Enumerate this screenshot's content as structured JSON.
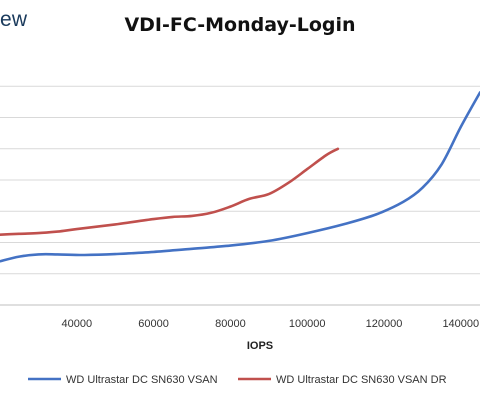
{
  "logo_fragment": "ew",
  "chart_data": {
    "type": "line",
    "title": "VDI-FC-Monday-Login",
    "xlabel": "IOPS",
    "ylabel": "",
    "xlim": [
      20000,
      145000
    ],
    "ylim": [
      0,
      8
    ],
    "x_ticks": [
      40000,
      60000,
      80000,
      100000,
      120000,
      140000
    ],
    "x_tick_labels": [
      "40000",
      "60000",
      "80000",
      "100000",
      "120000",
      "140000"
    ],
    "y_gridlines": [
      1,
      2,
      3,
      4,
      5,
      6,
      7
    ],
    "grid": true,
    "legend": "bottom",
    "series": [
      {
        "name": "WD Ultrastar DC SN630 VSAN",
        "color": "#4472C4",
        "x": [
          20000,
          25000,
          30000,
          35000,
          42000,
          50000,
          60000,
          70000,
          80000,
          90000,
          100000,
          110000,
          118000,
          125000,
          130000,
          135000,
          140000,
          145000
        ],
        "y": [
          1.4,
          1.55,
          1.62,
          1.62,
          1.6,
          1.63,
          1.7,
          1.8,
          1.9,
          2.05,
          2.3,
          2.6,
          2.9,
          3.3,
          3.75,
          4.5,
          5.7,
          6.8
        ]
      },
      {
        "name": "WD Ultrastar DC SN630 VSAN DR",
        "color": "#C0504D",
        "x": [
          20000,
          25000,
          30000,
          35000,
          40000,
          50000,
          60000,
          65000,
          70000,
          75000,
          80000,
          85000,
          90000,
          95000,
          100000,
          105000,
          108000
        ],
        "y": [
          2.25,
          2.28,
          2.3,
          2.35,
          2.43,
          2.58,
          2.75,
          2.82,
          2.85,
          2.95,
          3.15,
          3.4,
          3.55,
          3.9,
          4.35,
          4.8,
          5.0
        ]
      }
    ]
  }
}
